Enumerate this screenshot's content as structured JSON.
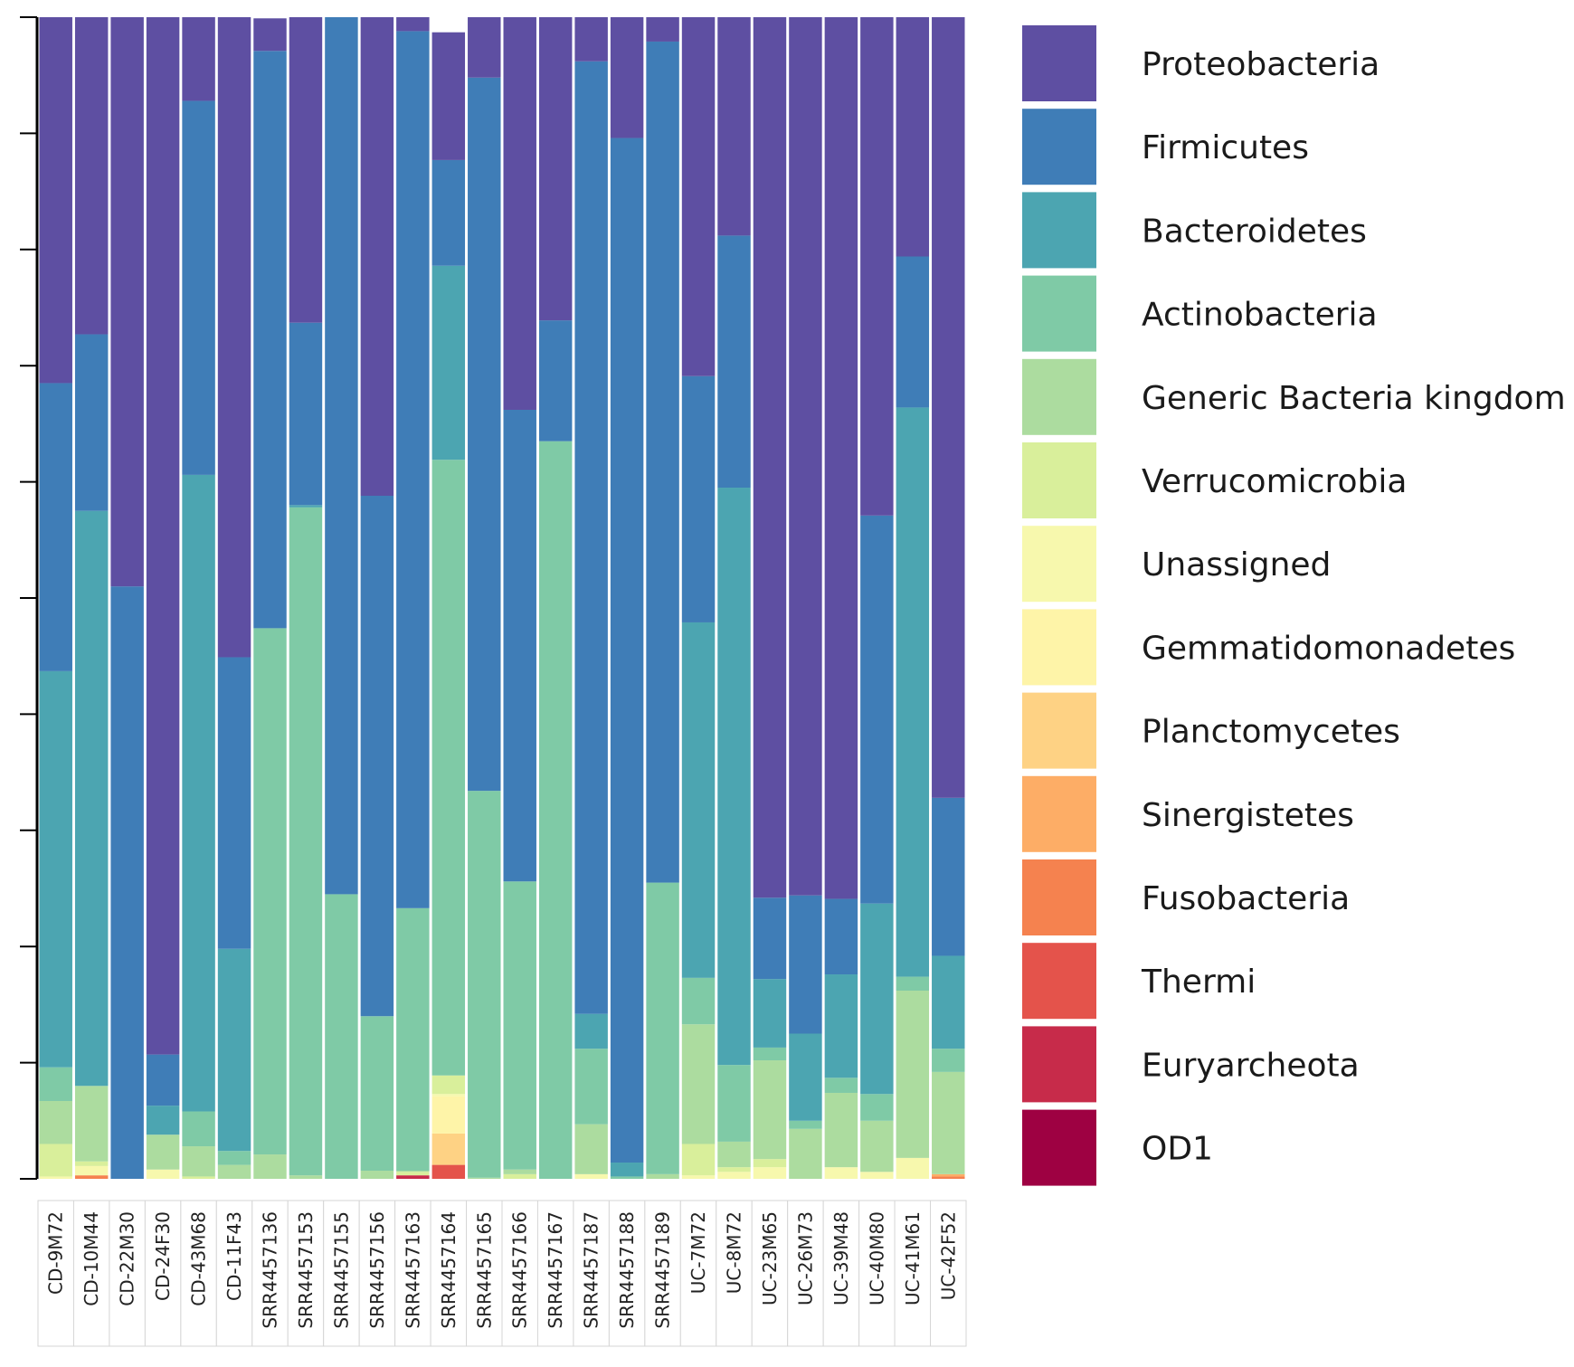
{
  "chart_data": {
    "type": "bar",
    "stacked": true,
    "orientation": "vertical",
    "title": "",
    "xlabel": "",
    "ylabel": "",
    "ylim": [
      0,
      1
    ],
    "legend_position": "right",
    "categories": [
      "CD-9M72",
      "CD-10M44",
      "CD-22M30",
      "CD-24F30",
      "CD-43M68",
      "CD-11F43",
      "SRR4457136",
      "SRR4457153",
      "SRR4457155",
      "SRR4457156",
      "SRR4457163",
      "SRR4457164",
      "SRR4457165",
      "SRR4457166",
      "SRR4457167",
      "SRR4457187",
      "SRR4457188",
      "SRR4457189",
      "UC-7M72",
      "UC-8M72",
      "UC-23M65",
      "UC-26M73",
      "UC-39M48",
      "UC-40M80",
      "UC-41M61",
      "UC-42F52"
    ],
    "series": [
      {
        "name": "OD1",
        "color": "#9e0142",
        "values": [
          0,
          0,
          0,
          0,
          0,
          0,
          0,
          0,
          0,
          0,
          0,
          0,
          0,
          0,
          0,
          0,
          0,
          0,
          0,
          0,
          0,
          0,
          0,
          0,
          0,
          0
        ]
      },
      {
        "name": "Euryarcheota",
        "color": "#c72b4a",
        "values": [
          0,
          0,
          0,
          0,
          0,
          0,
          0,
          0,
          0,
          0,
          0.003,
          0,
          0,
          0,
          0,
          0,
          0,
          0,
          0,
          0,
          0,
          0,
          0,
          0,
          0,
          0
        ]
      },
      {
        "name": "Thermi",
        "color": "#e4534b",
        "values": [
          0,
          0,
          0,
          0,
          0,
          0,
          0,
          0,
          0,
          0,
          0,
          0.012,
          0,
          0,
          0,
          0,
          0,
          0,
          0,
          0,
          0,
          0,
          0,
          0,
          0,
          0
        ]
      },
      {
        "name": "Fusobacteria",
        "color": "#f5824f",
        "values": [
          0,
          0.003,
          0,
          0,
          0,
          0,
          0,
          0,
          0,
          0,
          0,
          0,
          0,
          0,
          0,
          0,
          0,
          0,
          0,
          0,
          0,
          0,
          0,
          0,
          0,
          0.002
        ]
      },
      {
        "name": "Sinergistetes",
        "color": "#fdad66",
        "values": [
          0,
          0,
          0,
          0,
          0,
          0,
          0,
          0,
          0,
          0,
          0,
          0,
          0,
          0,
          0,
          0,
          0,
          0,
          0,
          0,
          0,
          0,
          0,
          0,
          0,
          0.002
        ]
      },
      {
        "name": "Planctomycetes",
        "color": "#fed284",
        "values": [
          0,
          0,
          0,
          0,
          0,
          0,
          0,
          0,
          0,
          0,
          0,
          0.027,
          0,
          0,
          0,
          0,
          0,
          0,
          0,
          0,
          0,
          0,
          0,
          0,
          0,
          0
        ]
      },
      {
        "name": "Gemmatidomonadetes",
        "color": "#fef4a8",
        "values": [
          0,
          0,
          0,
          0,
          0,
          0,
          0,
          0,
          0,
          0,
          0,
          0.032,
          0,
          0,
          0,
          0,
          0,
          0,
          0,
          0,
          0,
          0,
          0,
          0,
          0,
          0
        ]
      },
      {
        "name": "Unassigned",
        "color": "#f7f8ad",
        "values": [
          0.002,
          0.008,
          0,
          0.008,
          0,
          0,
          0,
          0,
          0,
          0,
          0,
          0.002,
          0,
          0,
          0,
          0.004,
          0,
          0,
          0.003,
          0.006,
          0.01,
          0,
          0.01,
          0.006,
          0.018,
          0
        ]
      },
      {
        "name": "Verrucomicrobia",
        "color": "#d9ef9b",
        "values": [
          0.028,
          0.004,
          0,
          0,
          0.002,
          0,
          0,
          0,
          0,
          0,
          0.003,
          0.016,
          0,
          0.004,
          0,
          0,
          0,
          0,
          0.027,
          0.004,
          0.007,
          0,
          0,
          0,
          0,
          0
        ]
      },
      {
        "name": "Generic Bacteria kingdom",
        "color": "#acdc9f",
        "values": [
          0.037,
          0.065,
          0,
          0.03,
          0.026,
          0.012,
          0.021,
          0.003,
          0,
          0.007,
          0.001,
          0,
          0.001,
          0.004,
          0,
          0.043,
          0,
          0.004,
          0.103,
          0.022,
          0.085,
          0.043,
          0.064,
          0.044,
          0.144,
          0.088
        ]
      },
      {
        "name": "Actinobacteria",
        "color": "#7fcaa6",
        "values": [
          0.029,
          0,
          0,
          0,
          0.03,
          0.012,
          0.453,
          0.575,
          0.245,
          0.133,
          0.226,
          0.53,
          0.333,
          0.248,
          0.635,
          0.065,
          0.002,
          0.251,
          0.04,
          0.066,
          0.011,
          0.007,
          0.013,
          0.023,
          0.012,
          0.02
        ]
      },
      {
        "name": "Bacteroidetes",
        "color": "#4ca5b1",
        "values": [
          0.341,
          0.495,
          0,
          0.025,
          0.548,
          0.174,
          0,
          0.002,
          0,
          0,
          0,
          0.167,
          0,
          0,
          0,
          0.03,
          0.012,
          0,
          0.306,
          0.497,
          0.059,
          0.075,
          0.089,
          0.164,
          0.49,
          0.08
        ]
      },
      {
        "name": "Firmicutes",
        "color": "#3f7db7",
        "values": [
          0.248,
          0.152,
          0.51,
          0.044,
          0.322,
          0.251,
          0.497,
          0.157,
          0.755,
          0.448,
          0.755,
          0.091,
          0.614,
          0.406,
          0.104,
          0.82,
          0.882,
          0.724,
          0.212,
          0.217,
          0.07,
          0.119,
          0.065,
          0.334,
          0.13,
          0.136
        ]
      },
      {
        "name": "Proteobacteria",
        "color": "#5e4fa2",
        "values": [
          0.315,
          0.273,
          0.49,
          0.893,
          0.072,
          0.551,
          0.028,
          0.263,
          0,
          0.412,
          0.012,
          0.11,
          0.052,
          0.338,
          0.261,
          0.038,
          0.104,
          0.021,
          0.309,
          0.188,
          0.758,
          0.756,
          0.759,
          0.429,
          0.206,
          0.672
        ]
      }
    ]
  },
  "legend": {
    "items": [
      "Proteobacteria",
      "Firmicutes",
      "Bacteroidetes",
      "Actinobacteria",
      "Generic Bacteria kingdom",
      "Verrucomicrobia",
      "Unassigned",
      "Gemmatidomonadetes",
      "Planctomycetes",
      "Sinergistetes",
      "Fusobacteria",
      "Thermi",
      "Euryarcheota",
      "OD1"
    ]
  }
}
